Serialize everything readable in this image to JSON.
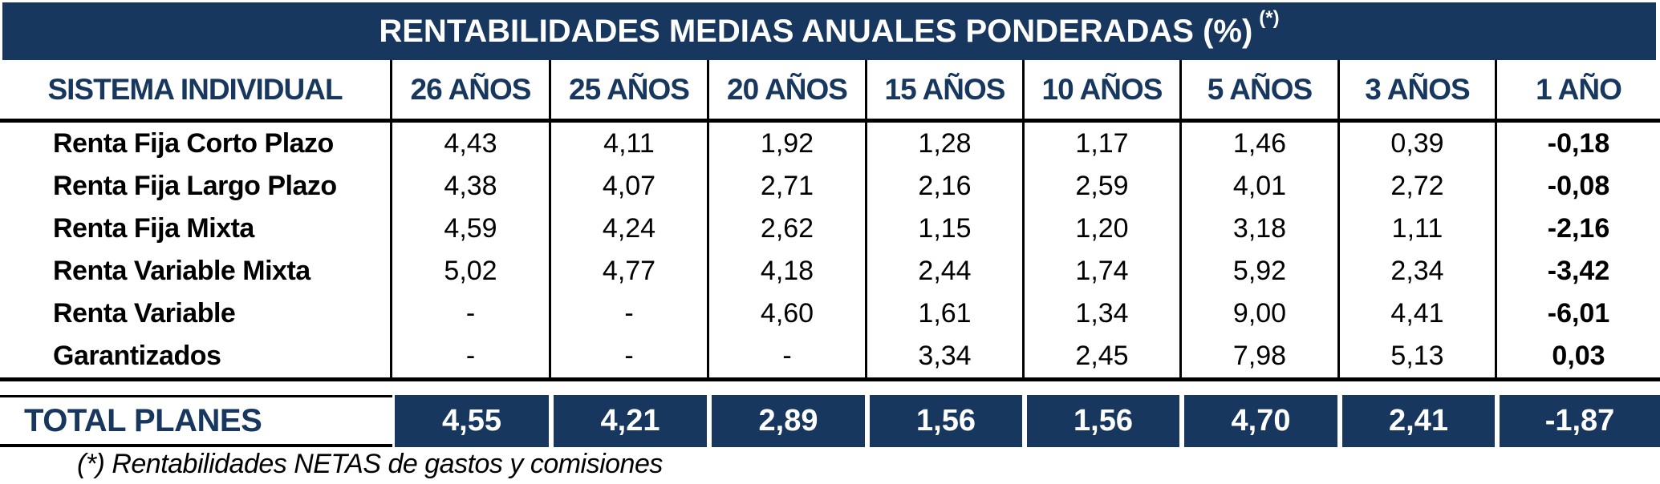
{
  "title": {
    "text": "RENTABILIDADES MEDIAS ANUALES PONDERADAS (%)",
    "marker": "(*)"
  },
  "table": {
    "header": {
      "label": "SISTEMA INDIVIDUAL",
      "periods": [
        "26 AÑOS",
        "25 AÑOS",
        "20 AÑOS",
        "15 AÑOS",
        "10 AÑOS",
        "5 AÑOS",
        "3 AÑOS",
        "1 AÑO"
      ]
    },
    "rows": [
      {
        "label": "Renta Fija Corto Plazo",
        "values": [
          "4,43",
          "4,11",
          "1,92",
          "1,28",
          "1,17",
          "1,46",
          "0,39",
          "-0,18"
        ]
      },
      {
        "label": "Renta Fija Largo Plazo",
        "values": [
          "4,38",
          "4,07",
          "2,71",
          "2,16",
          "2,59",
          "4,01",
          "2,72",
          "-0,08"
        ]
      },
      {
        "label": "Renta Fija Mixta",
        "values": [
          "4,59",
          "4,24",
          "2,62",
          "1,15",
          "1,20",
          "3,18",
          "1,11",
          "-2,16"
        ]
      },
      {
        "label": "Renta Variable Mixta",
        "values": [
          "5,02",
          "4,77",
          "4,18",
          "2,44",
          "1,74",
          "5,92",
          "2,34",
          "-3,42"
        ]
      },
      {
        "label": "Renta Variable",
        "values": [
          "-",
          "-",
          "4,60",
          "1,61",
          "1,34",
          "9,00",
          "4,41",
          "-6,01"
        ]
      },
      {
        "label": "Garantizados",
        "values": [
          "-",
          "-",
          "-",
          "3,34",
          "2,45",
          "7,98",
          "5,13",
          "0,03"
        ]
      }
    ],
    "total": {
      "label": "TOTAL PLANES",
      "values": [
        "4,55",
        "4,21",
        "2,89",
        "1,56",
        "1,56",
        "4,70",
        "2,41",
        "-1,87"
      ]
    }
  },
  "footnote": "(*) Rentabilidades NETAS de gastos y comisiones",
  "colors": {
    "navy": "#17375E",
    "text_black": "#000000",
    "title_text": "#FFFFFF"
  }
}
